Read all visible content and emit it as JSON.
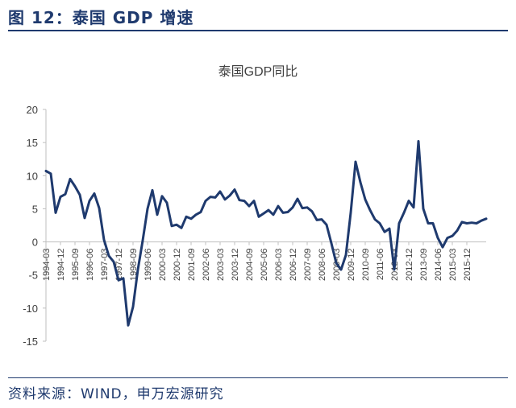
{
  "figure": {
    "title": "图 12：泰国 GDP 增速",
    "source": "资料来源：WIND，申万宏源研究"
  },
  "chart_data": {
    "type": "line",
    "title": "泰国GDP同比",
    "xlabel": "",
    "ylabel": "",
    "ylim": [
      -15,
      20
    ],
    "yticks": [
      20,
      15,
      10,
      5,
      0,
      -5,
      -10,
      -15
    ],
    "grid": false,
    "legend": "none",
    "colors": {
      "line": "#1f3a6e",
      "axis": "#bfbfbf",
      "text": "#404040"
    },
    "xtick_labels": [
      "1994-03",
      "1994-12",
      "1995-09",
      "1996-06",
      "1997-03",
      "1997-12",
      "1998-09",
      "1999-06",
      "2000-03",
      "2000-12",
      "2001-09",
      "2002-06",
      "2003-03",
      "2003-12",
      "2004-09",
      "2005-06",
      "2006-03",
      "2006-12",
      "2007-09",
      "2008-06",
      "2009-03",
      "2009-12",
      "2010-09",
      "2011-06",
      "2012-03",
      "2012-12",
      "2013-09",
      "2014-06",
      "2015-03",
      "2015-12"
    ],
    "series": [
      {
        "values": [
          10.7,
          10.3,
          4.4,
          6.8,
          7.2,
          9.5,
          8.4,
          7.1,
          3.6,
          6.2,
          7.3,
          5.1,
          0.3,
          -2.1,
          -3.0,
          -5.8,
          -5.5,
          -12.6,
          -9.8,
          -4.2,
          0.2,
          5.0,
          7.8,
          4.1,
          6.9,
          5.9,
          2.4,
          2.6,
          2.1,
          3.8,
          3.5,
          4.1,
          4.5,
          6.2,
          6.8,
          6.7,
          7.6,
          6.4,
          7.0,
          7.9,
          6.3,
          6.2,
          5.4,
          6.2,
          3.8,
          4.3,
          4.8,
          4.1,
          5.4,
          4.4,
          4.5,
          5.2,
          6.5,
          5.1,
          5.2,
          4.6,
          3.3,
          3.4,
          2.6,
          -0.2,
          -3.2,
          -4.2,
          -2.0,
          4.4,
          12.1,
          9.0,
          6.4,
          4.8,
          3.4,
          2.8,
          1.5,
          2.0,
          -4.2,
          2.8,
          4.4,
          6.2,
          5.2,
          15.2,
          5.0,
          2.8,
          2.8,
          0.6,
          -0.8,
          0.6,
          0.9,
          1.7,
          3.0,
          2.8,
          2.9,
          2.8,
          3.2,
          3.5
        ]
      }
    ]
  }
}
